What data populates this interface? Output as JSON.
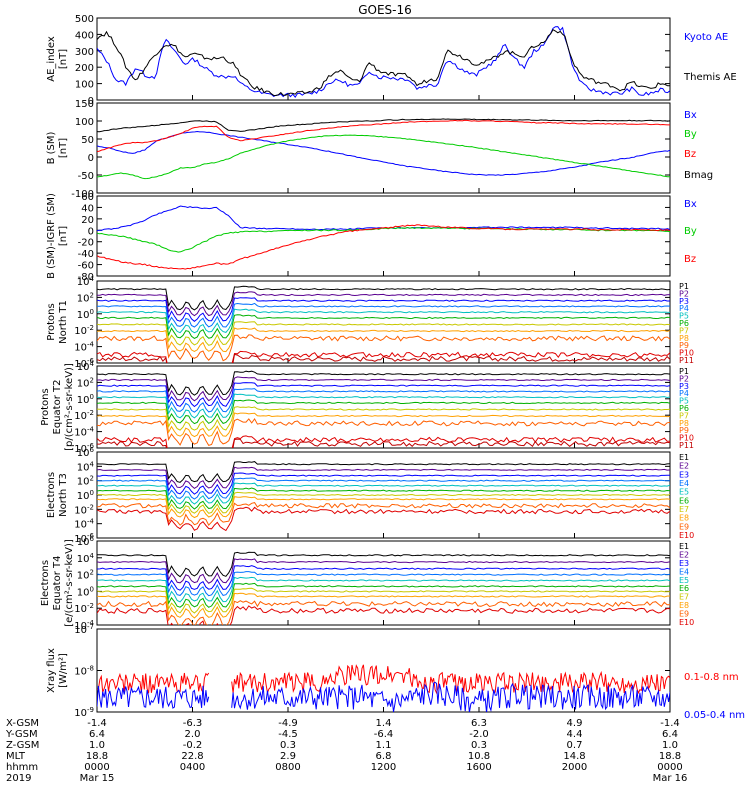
{
  "title": "GOES-16",
  "colors": {
    "black": "#000000",
    "blue": "#0000ff",
    "red": "#ff0000",
    "green": "#00cc00",
    "p1": "#000000",
    "p2": "#5a0090",
    "p3": "#0000ff",
    "p4": "#0070ff",
    "p5": "#00c0c0",
    "p6": "#00b000",
    "p7": "#c8c800",
    "p8": "#ffa000",
    "p9": "#ff6000",
    "p10": "#e00000",
    "p11": "#c00000"
  },
  "chart_data": [
    {
      "type": "line",
      "panel": "ae",
      "ylabel": "AE_index\n[nT]",
      "ylim": [
        0,
        500
      ],
      "yticks": [
        "500",
        "400",
        "300",
        "200",
        "100",
        "0"
      ],
      "series": [
        {
          "name": "Kyoto AE",
          "color": "blue",
          "values": [
            310,
            240,
            120,
            100,
            200,
            150,
            140,
            370,
            300,
            220,
            250,
            200,
            160,
            140,
            150,
            90,
            60,
            40,
            30,
            30,
            30,
            30,
            40,
            60,
            110,
            120,
            90,
            90,
            180,
            140,
            140,
            130,
            130,
            70,
            90,
            90,
            250,
            210,
            170,
            150,
            200,
            240,
            340,
            250,
            200,
            300,
            330,
            450,
            430,
            200,
            90,
            60,
            50,
            40,
            40,
            70,
            30,
            40,
            60,
            50
          ]
        },
        {
          "name": "Themis AE",
          "color": "black",
          "values": [
            380,
            410,
            330,
            200,
            120,
            200,
            280,
            340,
            330,
            260,
            280,
            260,
            250,
            260,
            220,
            140,
            80,
            60,
            40,
            35,
            35,
            40,
            50,
            80,
            150,
            180,
            130,
            110,
            230,
            180,
            160,
            150,
            150,
            90,
            120,
            130,
            300,
            280,
            250,
            220,
            230,
            260,
            300,
            280,
            270,
            330,
            350,
            430,
            410,
            230,
            140,
            120,
            100,
            90,
            60,
            110,
            80,
            70,
            100,
            90
          ]
        }
      ],
      "legend": [
        {
          "label": "Kyoto AE",
          "color": "blue"
        },
        {
          "label": "Themis AE",
          "color": "black"
        }
      ]
    },
    {
      "type": "line",
      "panel": "bsm",
      "ylabel": "B (SM)\n[nT]",
      "ylim": [
        -100,
        150
      ],
      "yticks": [
        "150",
        "100",
        "50",
        "0",
        "-50",
        "-100"
      ],
      "series": [
        {
          "name": "Bx",
          "color": "blue",
          "values": [
            30,
            25,
            15,
            10,
            20,
            45,
            55,
            65,
            70,
            70,
            65,
            60,
            55,
            50,
            45,
            40,
            35,
            30,
            25,
            18,
            12,
            5,
            -2,
            -8,
            -14,
            -20,
            -26,
            -30,
            -35,
            -40,
            -43,
            -47,
            -49,
            -50,
            -50,
            -48,
            -45,
            -42,
            -38,
            -33,
            -28,
            -22,
            -15,
            -10,
            -5,
            0,
            8,
            14,
            18
          ]
        },
        {
          "name": "By",
          "color": "green",
          "values": [
            -55,
            -50,
            -45,
            -50,
            -60,
            -55,
            -45,
            -30,
            -30,
            -20,
            -15,
            -5,
            10,
            20,
            30,
            38,
            45,
            50,
            55,
            58,
            60,
            60,
            60,
            58,
            56,
            54,
            50,
            46,
            42,
            38,
            34,
            30,
            25,
            20,
            15,
            10,
            5,
            0,
            -5,
            -10,
            -15,
            -20,
            -25,
            -30,
            -35,
            -40,
            -45,
            -50,
            -55
          ]
        },
        {
          "name": "Bz",
          "color": "red",
          "values": [
            15,
            25,
            35,
            40,
            40,
            45,
            55,
            65,
            80,
            85,
            85,
            55,
            45,
            50,
            55,
            60,
            65,
            70,
            75,
            78,
            82,
            85,
            88,
            90,
            92,
            95,
            97,
            98,
            99,
            100,
            101,
            101,
            100,
            100,
            99,
            98,
            96,
            95,
            95,
            94,
            93,
            92,
            92,
            92,
            92,
            91,
            91,
            90,
            90
          ]
        },
        {
          "name": "Bmag",
          "color": "black",
          "values": [
            70,
            75,
            80,
            82,
            85,
            88,
            92,
            95,
            100,
            100,
            98,
            75,
            72,
            75,
            80,
            85,
            88,
            90,
            92,
            95,
            97,
            98,
            100,
            100,
            102,
            103,
            104,
            104,
            105,
            105,
            105,
            105,
            104,
            104,
            104,
            103,
            103,
            102,
            102,
            101,
            101,
            101,
            101,
            101,
            101,
            101,
            101,
            101,
            100
          ]
        }
      ],
      "legend": [
        {
          "label": "Bx",
          "color": "blue"
        },
        {
          "label": "By",
          "color": "green"
        },
        {
          "label": "Bz",
          "color": "red"
        },
        {
          "label": "Bmag",
          "color": "black"
        }
      ]
    },
    {
      "type": "line",
      "panel": "igrf",
      "ylabel": "B (SM)-IGRF (SM)\n[nT]",
      "ylim": [
        -80,
        60
      ],
      "yticks": [
        "60",
        "40",
        "20",
        "0",
        "-20",
        "-40",
        "-60",
        "-80"
      ],
      "series": [
        {
          "name": "Bx",
          "color": "blue",
          "values": [
            0,
            2,
            5,
            10,
            18,
            28,
            35,
            42,
            40,
            38,
            40,
            25,
            5,
            4,
            3,
            3,
            3,
            2,
            2,
            2,
            2,
            2,
            3,
            4,
            4,
            4,
            4,
            4,
            4,
            4,
            4,
            4,
            5,
            5,
            5,
            5,
            5,
            5,
            5,
            5,
            5,
            4,
            4,
            4,
            3,
            3,
            3,
            3,
            2
          ]
        },
        {
          "name": "By",
          "color": "green",
          "values": [
            -5,
            -8,
            -10,
            -15,
            -20,
            -25,
            -35,
            -38,
            -30,
            -20,
            -10,
            -5,
            -3,
            -2,
            -2,
            -1,
            -1,
            0,
            0,
            0,
            0,
            0,
            1,
            2,
            3,
            4,
            4,
            4,
            4,
            4,
            4,
            3,
            3,
            3,
            2,
            2,
            2,
            2,
            1,
            1,
            1,
            1,
            0,
            0,
            0,
            0,
            0,
            -1,
            -3
          ]
        },
        {
          "name": "Bz",
          "color": "red",
          "values": [
            -45,
            -50,
            -55,
            -58,
            -60,
            -64,
            -66,
            -68,
            -66,
            -62,
            -58,
            -60,
            -50,
            -45,
            -38,
            -32,
            -26,
            -20,
            -15,
            -10,
            -6,
            -2,
            0,
            2,
            4,
            6,
            8,
            9,
            8,
            6,
            5,
            4,
            3,
            3,
            2,
            2,
            2,
            2,
            2,
            2,
            2,
            2,
            1,
            1,
            1,
            1,
            1,
            0,
            0
          ]
        }
      ],
      "legend": [
        {
          "label": "Bx",
          "color": "blue"
        },
        {
          "label": "By",
          "color": "green"
        },
        {
          "label": "Bz",
          "color": "red"
        }
      ]
    },
    {
      "type": "line",
      "panel": "protons_t1",
      "ylabel": "Protons\nNorth T1",
      "yscale": "log",
      "ylim": [
        -6,
        4
      ],
      "yticks": [
        "10^4",
        "10^2",
        "10^0",
        "10^-2",
        "10^-4",
        "10^-6"
      ],
      "channels": [
        "P1",
        "P2",
        "P3",
        "P4",
        "P5",
        "P6",
        "P7",
        "P8",
        "P9",
        "P10",
        "P11"
      ],
      "levels": [
        3.0,
        2.3,
        1.6,
        0.9,
        0.2,
        -0.5,
        -1.3,
        -2.1,
        -3.0,
        -5.0,
        -5.5
      ]
    },
    {
      "type": "line",
      "panel": "protons_t2",
      "ylabel": "Protons\nEquator T2\n[p/(cm²-s-sr-keV)]",
      "yscale": "log",
      "ylim": [
        -6,
        4
      ],
      "yticks": [
        "10^4",
        "10^2",
        "10^0",
        "10^-2",
        "10^-4",
        "10^-6"
      ],
      "channels": [
        "P1",
        "P2",
        "P3",
        "P4",
        "P5",
        "P6",
        "P7",
        "P8",
        "P9",
        "P10",
        "P11"
      ],
      "levels": [
        3.0,
        2.3,
        1.6,
        0.9,
        0.2,
        -0.5,
        -1.3,
        -2.1,
        -3.0,
        -5.0,
        -5.5
      ]
    },
    {
      "type": "line",
      "panel": "electrons_t3",
      "ylabel": "Electrons\nNorth T3",
      "yscale": "log",
      "ylim": [
        -6,
        6
      ],
      "yticks": [
        "10^6",
        "10^4",
        "10^2",
        "10^0",
        "10^-2",
        "10^-4",
        "10^-6"
      ],
      "channels": [
        "E1",
        "E2",
        "E3",
        "E4",
        "E5",
        "E6",
        "E7",
        "E8",
        "E9",
        "E10"
      ],
      "levels": [
        4.3,
        3.5,
        2.7,
        2.0,
        1.3,
        0.6,
        0,
        -0.6,
        -1.5,
        -2.3
      ]
    },
    {
      "type": "line",
      "panel": "electrons_t4",
      "ylabel": "Electrons\nEquator T4\n[e/(cm²-s-sr-keV)]",
      "yscale": "log",
      "ylim": [
        -4,
        6
      ],
      "yticks": [
        "10^6",
        "10^4",
        "10^2",
        "10^0",
        "10^-2",
        "10^-4"
      ],
      "channels": [
        "E1",
        "E2",
        "E3",
        "E4",
        "E5",
        "E6",
        "E7",
        "E8",
        "E9",
        "E10"
      ],
      "levels": [
        4.3,
        3.5,
        2.7,
        2.0,
        1.3,
        0.6,
        0,
        -0.6,
        -1.5,
        -2.3
      ]
    },
    {
      "type": "line",
      "panel": "xray",
      "ylabel": "Xray flux\n[W/m²]",
      "yscale": "log",
      "ylim": [
        -9,
        -7
      ],
      "yticks": [
        "10^-7",
        "10^-8",
        "10^-9"
      ],
      "series": [
        {
          "name": "0.1-0.8 nm",
          "color": "red"
        },
        {
          "name": "0.05-0.4 nm",
          "color": "blue"
        }
      ],
      "legend": [
        {
          "label": "0.1-0.8 nm",
          "color": "red"
        },
        {
          "label": "0.05-0.4 nm",
          "color": "blue"
        }
      ]
    }
  ],
  "x_axis": {
    "row_labels": [
      "X-GSM",
      "Y-GSM",
      "Z-GSM",
      "MLT",
      "hhmm",
      "2019"
    ],
    "columns": [
      [
        "-1.4",
        "6.4",
        "1.0",
        "18.8",
        "0000",
        "Mar 15"
      ],
      [
        "-6.3",
        "2.0",
        "-0.2",
        "22.8",
        "0400",
        ""
      ],
      [
        "-4.9",
        "-4.5",
        "0.3",
        "2.9",
        "0800",
        ""
      ],
      [
        "1.4",
        "-6.4",
        "1.1",
        "6.8",
        "1200",
        ""
      ],
      [
        "6.3",
        "-2.0",
        "0.3",
        "10.8",
        "1600",
        ""
      ],
      [
        "4.9",
        "4.4",
        "0.7",
        "14.8",
        "2000",
        ""
      ],
      [
        "-1.4",
        "6.4",
        "1.0",
        "18.8",
        "0000",
        "Mar 16"
      ]
    ]
  }
}
